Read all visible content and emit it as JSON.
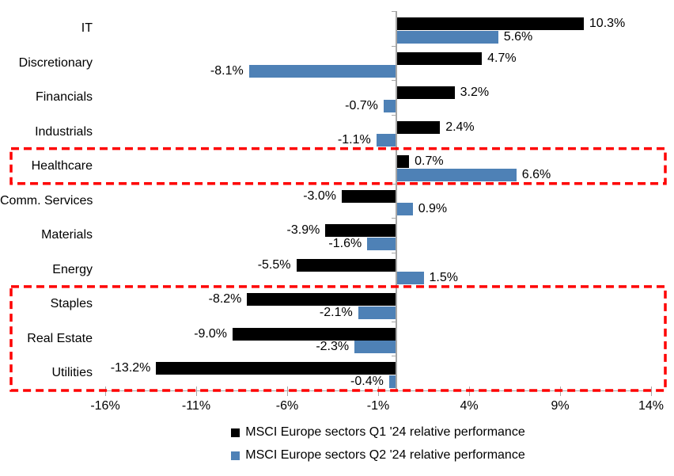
{
  "chart_data": {
    "type": "bar",
    "orientation": "horizontal",
    "categories": [
      "IT",
      "Discretionary",
      "Financials",
      "Industrials",
      "Healthcare",
      "Comm. Services",
      "Materials",
      "Energy",
      "Staples",
      "Real Estate",
      "Utilities"
    ],
    "series": [
      {
        "name": "MSCI Europe sectors Q1 '24 relative performance",
        "color": "#000000",
        "values": [
          10.3,
          4.7,
          3.2,
          2.4,
          0.7,
          -3.0,
          -3.9,
          -5.5,
          -8.2,
          -9.0,
          -13.2
        ],
        "labels": [
          "10.3%",
          "4.7%",
          "3.2%",
          "2.4%",
          "0.7%",
          "-3.0%",
          "-3.9%",
          "-5.5%",
          "-8.2%",
          "-9.0%",
          "-13.2%"
        ]
      },
      {
        "name": "MSCI Europe sectors Q2 '24 relative performance",
        "color": "#4E81B6",
        "values": [
          5.6,
          -8.1,
          -0.7,
          -1.1,
          6.6,
          0.9,
          -1.6,
          1.5,
          -2.1,
          -2.3,
          -0.4
        ],
        "labels": [
          "5.6%",
          "-8.1%",
          "-0.7%",
          "-1.1%",
          "6.6%",
          "0.9%",
          "-1.6%",
          "1.5%",
          "-2.1%",
          "-2.3%",
          "-0.4%"
        ]
      }
    ],
    "x_axis": {
      "min": -16,
      "max": 14,
      "tick_step": 5,
      "tick_labels": [
        "-16%",
        "-11%",
        "-6%",
        "-1%",
        "4%",
        "9%",
        "14%"
      ]
    },
    "title": "",
    "xlabel": "",
    "ylabel": "",
    "grid": false,
    "legend_position": "bottom",
    "data_label_format": "0.0%",
    "highlights": [
      {
        "style": "red-dashed-box",
        "categories": [
          "Healthcare"
        ]
      },
      {
        "style": "red-dashed-box",
        "categories": [
          "Staples",
          "Real Estate",
          "Utilities"
        ]
      }
    ],
    "colors": {
      "axis": "#A6A6A6",
      "highlight": "#FE0000",
      "text": "#000000",
      "background": "#FFFFFF"
    }
  }
}
